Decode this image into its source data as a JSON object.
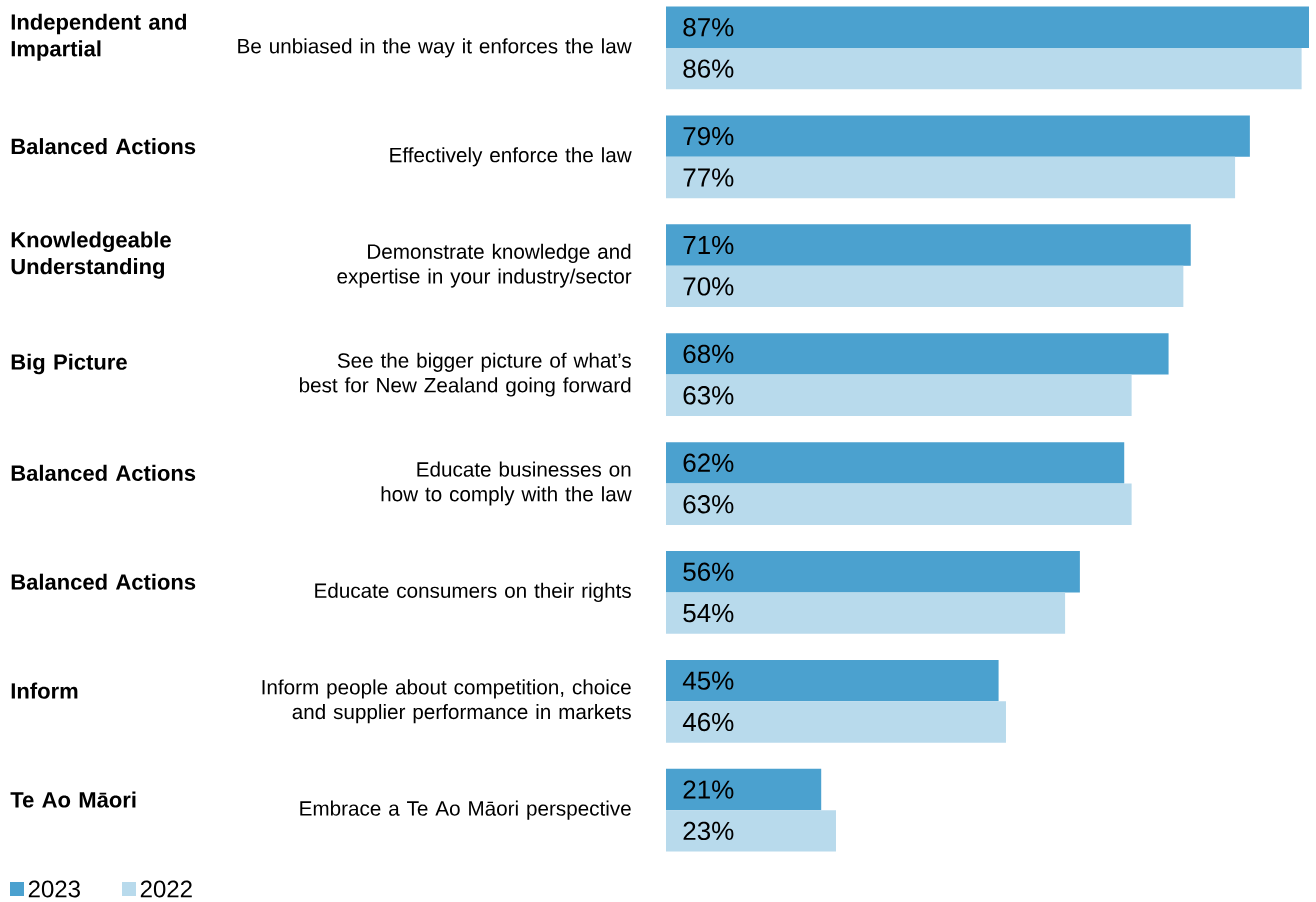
{
  "chart_data": {
    "type": "bar",
    "orientation": "horizontal",
    "categories": [
      "Be unbiased in the way it enforces the law",
      "Effectively enforce the law",
      "Demonstrate knowledge and expertise in your industry/sector",
      "See the bigger picture of what’s best for New Zealand going forward",
      "Educate businesses on how to comply with the law",
      "Educate consumers on their rights",
      "Inform people about competition, choice and supplier performance in markets",
      "Embrace a Te Ao Māori perspective"
    ],
    "annotations": [
      "Independent and Impartial",
      "Balanced Actions",
      "Knowledgeable Understanding",
      "Big Picture",
      "Balanced Actions",
      "Balanced Actions",
      "Inform",
      "Te Ao Māori"
    ],
    "xlim": [
      0,
      87
    ],
    "series": [
      {
        "name": "2023",
        "color": "#4ba1cf",
        "values": [
          87,
          79,
          71,
          68,
          62,
          56,
          45,
          21
        ],
        "value_labels": [
          "87%",
          "79%",
          "71%",
          "68%",
          "62%",
          "56%",
          "45%",
          "21%"
        ]
      },
      {
        "name": "2022",
        "color": "#b8daec",
        "values": [
          86,
          77,
          70,
          63,
          63,
          54,
          46,
          23
        ],
        "value_labels": [
          "86%",
          "77%",
          "70%",
          "63%",
          "63%",
          "54%",
          "46%",
          "23%"
        ]
      }
    ],
    "legend": "bottom left"
  }
}
